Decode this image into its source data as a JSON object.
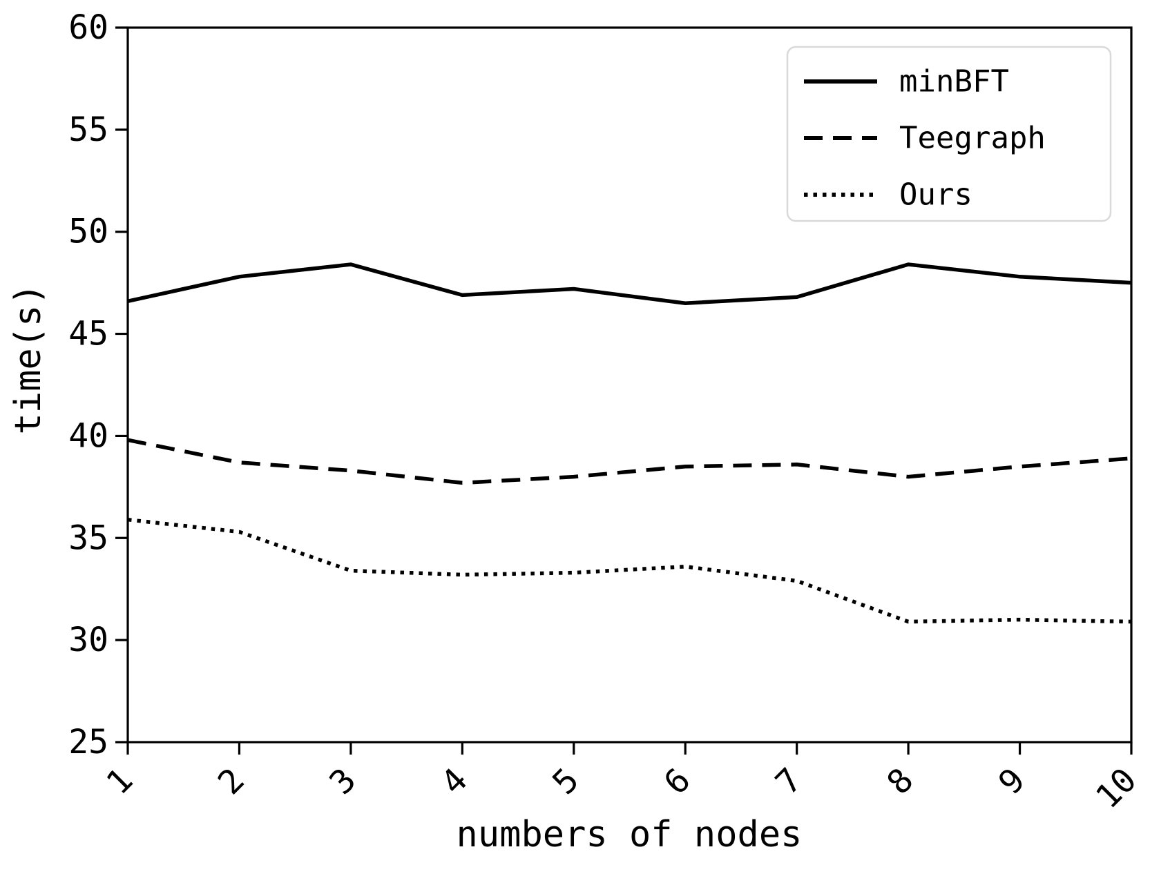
{
  "figure": {
    "background": "#ffffff",
    "line_color": "#000000",
    "legend_border_color": "#d9d9d9"
  },
  "chart_data": {
    "type": "line",
    "title": "",
    "xlabel": "numbers of nodes",
    "ylabel": "time(s)",
    "x": [
      1,
      2,
      3,
      4,
      5,
      6,
      7,
      8,
      9,
      10
    ],
    "xtick_labels": [
      "1",
      "2",
      "3",
      "4",
      "5",
      "6",
      "7",
      "8",
      "9",
      "10"
    ],
    "yticks": [
      25,
      30,
      35,
      40,
      45,
      50,
      55,
      60
    ],
    "xlim": [
      1,
      10
    ],
    "ylim": [
      25,
      60
    ],
    "grid": false,
    "legend_position": "upper right",
    "series": [
      {
        "name": "minBFT",
        "line_style": "solid",
        "color": "#000000",
        "values": [
          46.6,
          47.8,
          48.4,
          46.9,
          47.2,
          46.5,
          46.8,
          48.4,
          47.8,
          47.5
        ]
      },
      {
        "name": "Teegraph",
        "line_style": "dashed",
        "color": "#000000",
        "values": [
          39.8,
          38.7,
          38.3,
          37.7,
          38.0,
          38.5,
          38.6,
          38.0,
          38.5,
          38.9
        ]
      },
      {
        "name": "Ours",
        "line_style": "dotted",
        "color": "#000000",
        "values": [
          35.9,
          35.3,
          33.4,
          33.2,
          33.3,
          33.6,
          32.9,
          30.9,
          31.0,
          30.9
        ]
      }
    ]
  }
}
